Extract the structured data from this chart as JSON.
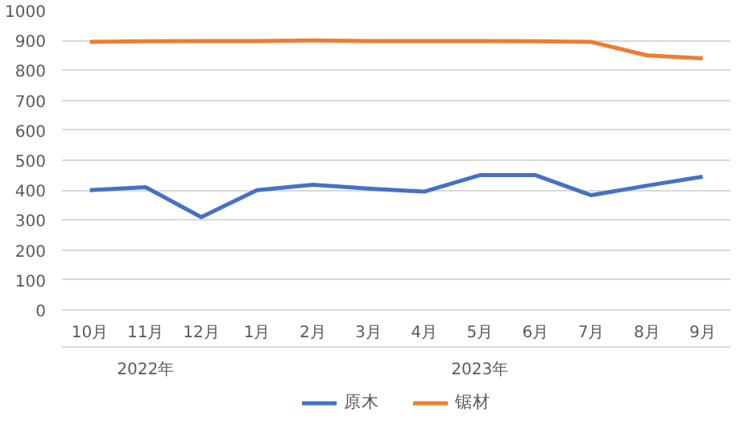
{
  "chart_data": {
    "type": "line",
    "categories": [
      "10月",
      "11月",
      "12月",
      "1月",
      "2月",
      "3月",
      "4月",
      "5月",
      "6月",
      "7月",
      "8月",
      "9月"
    ],
    "series": [
      {
        "name": "原木",
        "color": "#4472c4",
        "values": [
          400,
          410,
          310,
          400,
          418,
          405,
          395,
          450,
          450,
          383,
          415,
          445
        ]
      },
      {
        "name": "锯材",
        "color": "#ed7d31",
        "values": [
          895,
          897,
          898,
          898,
          900,
          898,
          898,
          898,
          897,
          895,
          850,
          840
        ]
      }
    ],
    "ylim": [
      0,
      1000
    ],
    "yticks": [
      0,
      100,
      200,
      300,
      400,
      500,
      600,
      700,
      800,
      900,
      1000
    ],
    "grid": "y",
    "legend": "bottom",
    "marker": "none",
    "line_style": "solid",
    "annotations": [
      "2022年",
      "2023年"
    ]
  }
}
